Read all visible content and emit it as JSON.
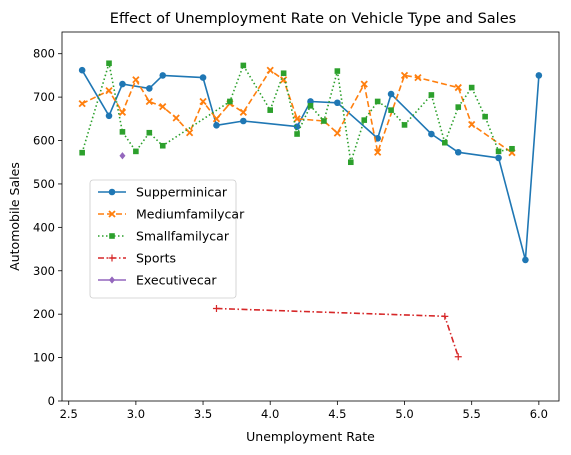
{
  "chart_data": {
    "type": "line",
    "title": "Effect of Unemployment Rate on Vehicle Type and Sales",
    "xlabel": "Unemployment Rate",
    "ylabel": "Automobile Sales",
    "xlim": [
      2.45,
      6.15
    ],
    "ylim": [
      0,
      850
    ],
    "xticks": [
      "2.5",
      "3.0",
      "3.5",
      "4.0",
      "4.5",
      "5.0",
      "5.5",
      "6.0"
    ],
    "yticks": [
      "0",
      "100",
      "200",
      "300",
      "400",
      "500",
      "600",
      "700",
      "800"
    ],
    "grid": false,
    "legend": "center-left",
    "series": [
      {
        "name": "Supperminicar",
        "color": "#1f77b4",
        "marker": "circle",
        "dash": "solid",
        "x": [
          2.6,
          2.8,
          2.9,
          3.1,
          3.2,
          3.5,
          3.6,
          3.8,
          4.2,
          4.3,
          4.5,
          4.8,
          4.9,
          5.2,
          5.4,
          5.7,
          5.9,
          6.0
        ],
        "y": [
          762,
          657,
          730,
          720,
          750,
          745,
          635,
          645,
          632,
          690,
          687,
          605,
          707,
          615,
          573,
          560,
          325,
          750
        ]
      },
      {
        "name": "Mediumfamilycar",
        "color": "#ff7f0e",
        "marker": "x",
        "dash": "dashed",
        "x": [
          2.6,
          2.8,
          2.9,
          3.0,
          3.1,
          3.2,
          3.3,
          3.4,
          3.5,
          3.6,
          3.7,
          3.8,
          4.0,
          4.1,
          4.2,
          4.4,
          4.5,
          4.7,
          4.8,
          5.0,
          5.1,
          5.4,
          5.5,
          5.8
        ],
        "y": [
          685,
          715,
          665,
          740,
          690,
          678,
          652,
          618,
          690,
          650,
          685,
          665,
          762,
          740,
          650,
          645,
          617,
          730,
          573,
          750,
          745,
          722,
          637,
          572
        ]
      },
      {
        "name": "Smallfamilycar",
        "color": "#2ca02c",
        "marker": "square",
        "dash": "dotted",
        "x": [
          2.6,
          2.8,
          2.9,
          3.0,
          3.1,
          3.2,
          3.7,
          3.8,
          4.0,
          4.1,
          4.2,
          4.3,
          4.4,
          4.5,
          4.6,
          4.7,
          4.8,
          4.9,
          5.0,
          5.2,
          5.3,
          5.4,
          5.5,
          5.6,
          5.7,
          5.8
        ],
        "y": [
          572,
          778,
          620,
          575,
          618,
          588,
          690,
          773,
          670,
          755,
          615,
          680,
          645,
          760,
          550,
          647,
          690,
          670,
          636,
          705,
          595,
          677,
          722,
          655,
          575,
          581
        ]
      },
      {
        "name": "Sports",
        "color": "#d62728",
        "marker": "plus",
        "dash": "dashdot",
        "x": [
          3.6,
          5.3,
          5.4
        ],
        "y": [
          213,
          195,
          102
        ]
      },
      {
        "name": "Executivecar",
        "color": "#9467bd",
        "marker": "diamond",
        "dash": "solid",
        "x": [
          2.9
        ],
        "y": [
          565
        ]
      }
    ]
  }
}
